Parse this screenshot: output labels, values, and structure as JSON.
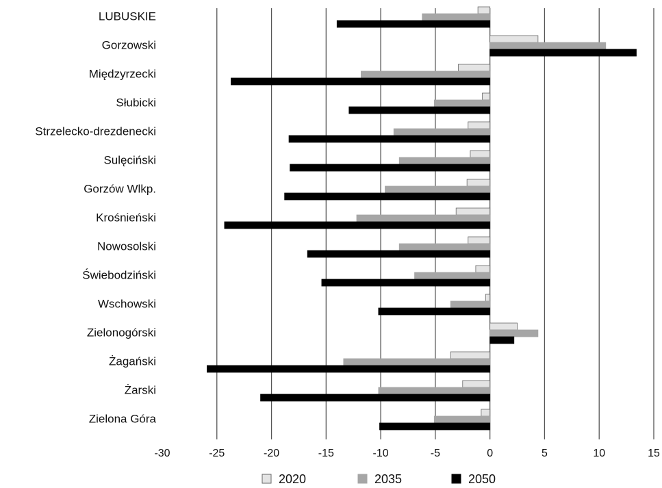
{
  "chart_data": {
    "type": "bar",
    "orientation": "horizontal",
    "title": "",
    "xlabel": "",
    "ylabel": "",
    "xlim": [
      -30,
      15
    ],
    "xticks": [
      -30,
      -25,
      -20,
      -15,
      -10,
      -5,
      0,
      5,
      10,
      15
    ],
    "grid": "vertical",
    "legend_position": "bottom",
    "categories": [
      "LUBUSKIE",
      "Gorzowski",
      "Międzyrzecki",
      "Słubicki",
      "Strzelecko-drezdenecki",
      "Sulęciński",
      "Gorzów Wlkp.",
      "Krośnieński",
      "Nowosolski",
      "Świebodziński",
      "Wschowski",
      "Zielonogórski",
      "Żagański",
      "Żarski",
      "Zielona Góra"
    ],
    "series": [
      {
        "name": "2020",
        "color": "#e4e4e4",
        "stroke": "#666666",
        "values": [
          -1.1,
          4.4,
          -2.9,
          -0.7,
          -2.0,
          -1.8,
          -2.1,
          -3.1,
          -2.0,
          -1.3,
          -0.4,
          2.5,
          -3.6,
          -2.5,
          -0.8
        ]
      },
      {
        "name": "2035",
        "color": "#a6a6a6",
        "stroke": "#a6a6a6",
        "values": [
          -6.2,
          10.6,
          -11.8,
          -5.1,
          -8.8,
          -8.3,
          -9.6,
          -12.2,
          -8.3,
          -6.9,
          -3.6,
          4.4,
          -13.4,
          -10.2,
          -5.1
        ]
      },
      {
        "name": "2050",
        "color": "#000000",
        "stroke": "#000000",
        "values": [
          -14.0,
          13.4,
          -23.7,
          -12.9,
          -18.4,
          -18.3,
          -18.8,
          -24.3,
          -16.7,
          -15.4,
          -10.2,
          2.2,
          -25.9,
          -21.0,
          -10.1
        ]
      }
    ]
  }
}
